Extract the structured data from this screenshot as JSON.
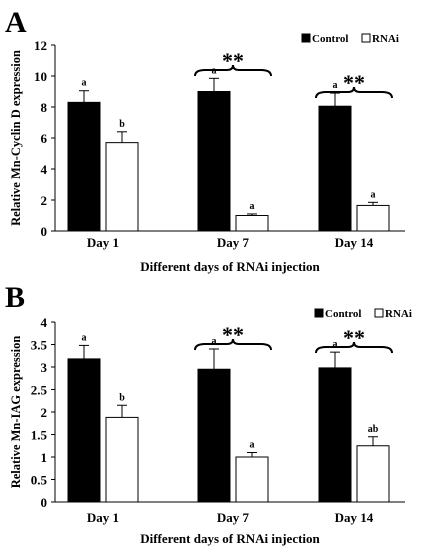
{
  "chart_data": [
    {
      "panel_label": "A",
      "type": "bar",
      "ylabel": "Relative Mn-Cyclin D expression",
      "xlabel": "Different days of RNAi injection",
      "categories": [
        "Day 1",
        "Day 7",
        "Day 14"
      ],
      "ylim": [
        0,
        12
      ],
      "yticks": [
        "0",
        "2",
        "4",
        "6",
        "8",
        "10",
        "12"
      ],
      "legend_position": "top-right",
      "series": [
        {
          "name": "Control",
          "color": "#000000",
          "values": [
            8.3,
            9.0,
            8.05
          ],
          "errors": [
            0.75,
            0.85,
            0.85
          ],
          "letters": [
            "a",
            "a",
            "a"
          ]
        },
        {
          "name": "RNAi",
          "color": "#ffffff",
          "values": [
            5.7,
            1.0,
            1.65
          ],
          "errors": [
            0.7,
            0.1,
            0.2
          ],
          "letters": [
            "b",
            "a",
            "a"
          ]
        }
      ],
      "significance": [
        {
          "category": "Day 7",
          "label": "**"
        },
        {
          "category": "Day 14",
          "label": "**"
        }
      ]
    },
    {
      "panel_label": "B",
      "type": "bar",
      "ylabel": "Relative Mn-IAG expression",
      "xlabel": "Different days of RNAi injection",
      "categories": [
        "Day 1",
        "Day 7",
        "Day 14"
      ],
      "ylim": [
        0,
        4
      ],
      "yticks": [
        "0",
        "0.5",
        "1",
        "1.5",
        "2",
        "2.5",
        "3",
        "3.5",
        "4"
      ],
      "legend_position": "top-right",
      "series": [
        {
          "name": "Control",
          "color": "#000000",
          "values": [
            3.18,
            2.95,
            2.98
          ],
          "errors": [
            0.3,
            0.45,
            0.35
          ],
          "letters": [
            "a",
            "a",
            "a"
          ]
        },
        {
          "name": "RNAi",
          "color": "#ffffff",
          "values": [
            1.88,
            1.0,
            1.25
          ],
          "errors": [
            0.27,
            0.1,
            0.2
          ],
          "letters": [
            "b",
            "a",
            "ab"
          ]
        }
      ],
      "significance": [
        {
          "category": "Day 7",
          "label": "**"
        },
        {
          "category": "Day 14",
          "label": "**"
        }
      ]
    }
  ]
}
